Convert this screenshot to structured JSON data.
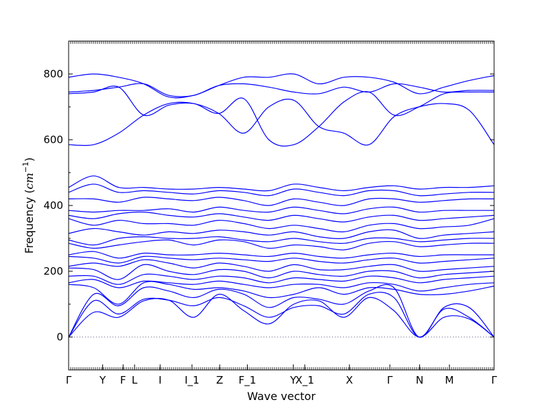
{
  "chart_data": {
    "type": "line",
    "title": "",
    "xlabel": "Wave vector",
    "ylabel_text": "Frequency (",
    "ylabel_unit_base": "cm",
    "ylabel_unit_exp": "−1",
    "ylabel_close": ")",
    "ylim": [
      -100,
      900
    ],
    "yticks": [
      0,
      200,
      400,
      600,
      800
    ],
    "xticks": [
      {
        "label": "Γ",
        "x": 0.0
      },
      {
        "label": "Y",
        "x": 0.8
      },
      {
        "label": "F",
        "x": 1.28
      },
      {
        "label": "L",
        "x": 1.55
      },
      {
        "label": "I",
        "x": 2.15
      },
      {
        "label": "I_1",
        "x": 2.9
      },
      {
        "label": "Z",
        "x": 3.55
      },
      {
        "label": "F_1",
        "x": 4.2
      },
      {
        "label": "Y",
        "x": 5.28
      },
      {
        "label": "X_1",
        "x": 5.55
      },
      {
        "label": "X",
        "x": 6.6
      },
      {
        "label": "Γ",
        "x": 7.55
      },
      {
        "label": "N",
        "x": 8.25
      },
      {
        "label": "M",
        "x": 8.95
      },
      {
        "label": "Γ",
        "x": 10.0
      }
    ],
    "xlim": [
      0,
      10
    ],
    "line_color": "#0000ff",
    "zero_line_color": "#555577",
    "series": [
      {
        "values": [
          0,
          75,
          60,
          110,
          112,
          60,
          130,
          80,
          40,
          100,
          110,
          60,
          120,
          80,
          0,
          60,
          55,
          0
        ]
      },
      {
        "values": [
          0,
          110,
          70,
          115,
          112,
          95,
          120,
          95,
          60,
          90,
          95,
          70,
          130,
          120,
          0,
          85,
          60,
          0
        ]
      },
      {
        "values": [
          0,
          130,
          95,
          150,
          140,
          120,
          145,
          130,
          90,
          120,
          115,
          100,
          140,
          150,
          0,
          90,
          90,
          0
        ]
      },
      {
        "values": [
          160,
          150,
          100,
          165,
          160,
          145,
          150,
          140,
          120,
          130,
          150,
          130,
          150,
          145,
          130,
          130,
          140,
          155
        ]
      },
      {
        "values": [
          165,
          175,
          150,
          170,
          165,
          160,
          170,
          160,
          150,
          160,
          160,
          150,
          165,
          160,
          140,
          150,
          160,
          165
        ]
      },
      {
        "values": [
          185,
          185,
          160,
          190,
          185,
          175,
          185,
          180,
          165,
          180,
          175,
          170,
          185,
          180,
          165,
          175,
          180,
          185
        ]
      },
      {
        "values": [
          210,
          205,
          175,
          220,
          200,
          190,
          205,
          200,
          180,
          200,
          190,
          185,
          200,
          200,
          180,
          190,
          195,
          200
        ]
      },
      {
        "values": [
          215,
          225,
          215,
          235,
          225,
          210,
          225,
          215,
          200,
          220,
          205,
          205,
          215,
          220,
          200,
          205,
          210,
          215
        ]
      },
      {
        "values": [
          245,
          240,
          225,
          245,
          240,
          235,
          240,
          235,
          230,
          240,
          230,
          225,
          235,
          240,
          225,
          230,
          235,
          240
        ]
      },
      {
        "values": [
          250,
          260,
          240,
          255,
          250,
          250,
          255,
          250,
          245,
          255,
          245,
          240,
          250,
          255,
          245,
          250,
          250,
          250
        ]
      },
      {
        "values": [
          285,
          270,
          280,
          290,
          295,
          280,
          295,
          290,
          270,
          280,
          275,
          265,
          285,
          290,
          275,
          280,
          285,
          285
        ]
      },
      {
        "values": [
          295,
          280,
          300,
          305,
          300,
          300,
          305,
          295,
          290,
          300,
          290,
          285,
          300,
          300,
          290,
          295,
          300,
          300
        ]
      },
      {
        "values": [
          315,
          330,
          320,
          310,
          320,
          315,
          325,
          320,
          310,
          320,
          305,
          300,
          320,
          325,
          300,
          310,
          315,
          320
        ]
      },
      {
        "values": [
          360,
          340,
          355,
          345,
          345,
          340,
          355,
          345,
          330,
          340,
          330,
          320,
          340,
          345,
          330,
          335,
          340,
          360
        ]
      },
      {
        "values": [
          370,
          360,
          375,
          380,
          370,
          365,
          375,
          365,
          355,
          370,
          360,
          350,
          365,
          370,
          355,
          360,
          365,
          370
        ]
      },
      {
        "values": [
          385,
          380,
          385,
          385,
          390,
          380,
          395,
          385,
          380,
          395,
          385,
          375,
          390,
          395,
          380,
          385,
          385,
          385
        ]
      },
      {
        "values": [
          420,
          420,
          410,
          425,
          420,
          415,
          425,
          415,
          400,
          420,
          410,
          400,
          420,
          420,
          410,
          415,
          420,
          420
        ]
      },
      {
        "values": [
          440,
          465,
          440,
          445,
          440,
          435,
          445,
          440,
          430,
          450,
          440,
          430,
          445,
          445,
          430,
          435,
          440,
          440
        ]
      },
      {
        "values": [
          455,
          490,
          455,
          455,
          450,
          450,
          455,
          450,
          445,
          465,
          455,
          445,
          455,
          460,
          450,
          455,
          455,
          460
        ]
      },
      {
        "values": [
          585,
          585,
          620,
          675,
          710,
          710,
          680,
          620,
          700,
          720,
          640,
          620,
          585,
          670,
          700,
          710,
          690,
          585
        ]
      },
      {
        "values": [
          740,
          745,
          760,
          675,
          705,
          710,
          680,
          725,
          600,
          585,
          640,
          715,
          745,
          675,
          700,
          740,
          745,
          745
        ]
      },
      {
        "values": [
          745,
          750,
          760,
          770,
          735,
          735,
          765,
          770,
          760,
          745,
          740,
          760,
          745,
          770,
          760,
          745,
          750,
          750
        ]
      },
      {
        "values": [
          790,
          800,
          790,
          770,
          730,
          735,
          765,
          790,
          790,
          800,
          770,
          790,
          790,
          775,
          740,
          760,
          780,
          795
        ]
      }
    ]
  }
}
